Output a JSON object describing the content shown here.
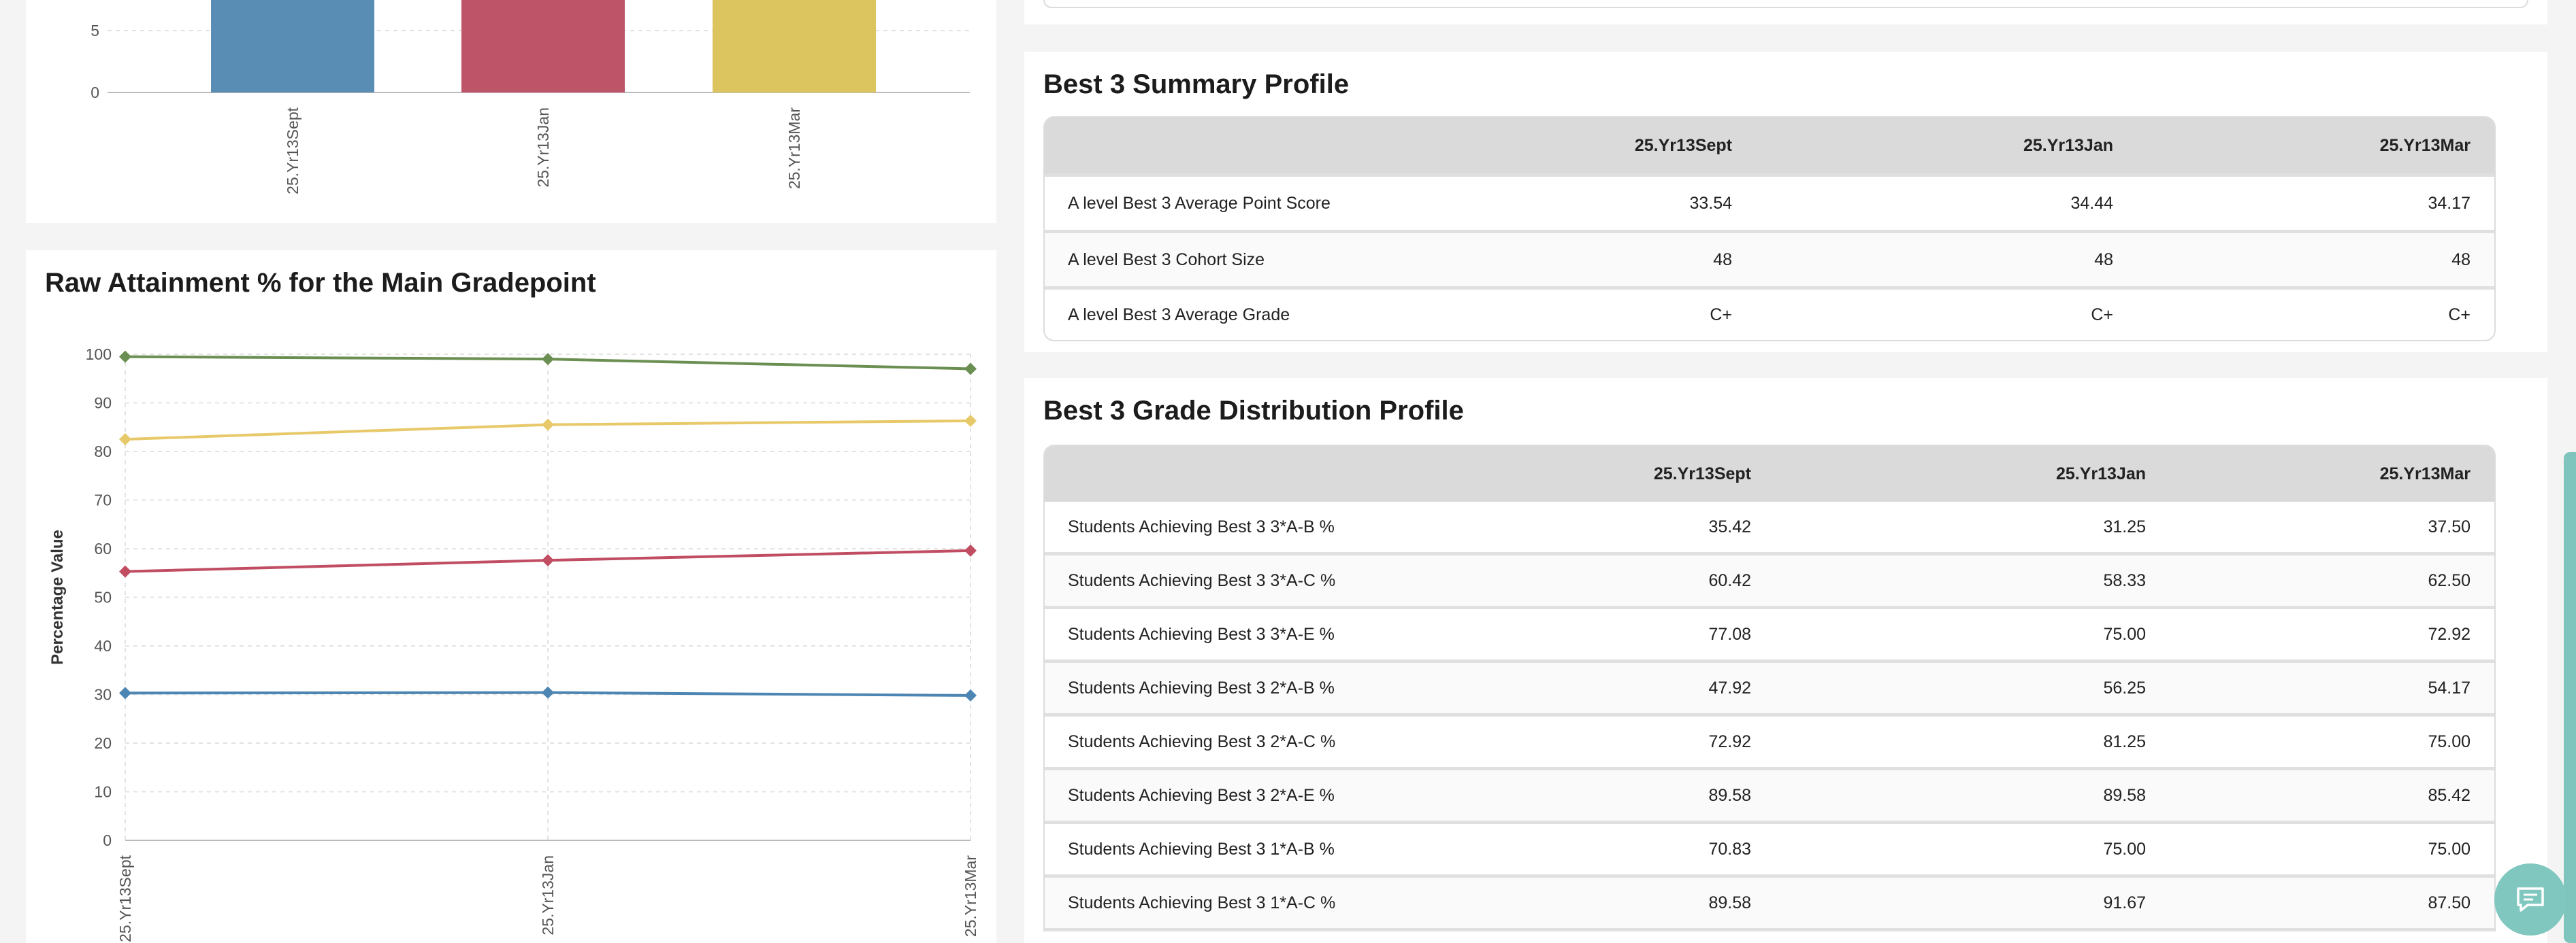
{
  "bar_chart_top": {
    "chart_data": {
      "type": "bar",
      "categories": [
        "25.Yr13Sept",
        "25.Yr13Jan",
        "25.Yr13Mar"
      ],
      "y_ticks_visible": [
        "5",
        "0"
      ],
      "series_colors": [
        "#5a8db3",
        "#be5468",
        "#dcc45e"
      ]
    }
  },
  "line_chart": {
    "title": "Raw Attainment % for the Main Gradepoint",
    "chart_data": {
      "type": "line",
      "categories": [
        "25.Yr13Sept",
        "25.Yr13Jan",
        "25.Yr13Mar"
      ],
      "ylabel": "Percentage Value",
      "ylim": [
        0,
        100
      ],
      "y_ticks": [
        "0",
        "10",
        "20",
        "30",
        "40",
        "50",
        "60",
        "70",
        "80",
        "90",
        "100"
      ],
      "grid": true,
      "series": [
        {
          "values": [
            99.5,
            99,
            97
          ],
          "color": "#6b8f52"
        },
        {
          "values": [
            82.5,
            85.5,
            86.3
          ],
          "color": "#e8c96a"
        },
        {
          "values": [
            55.3,
            57.6,
            59.6
          ],
          "color": "#c04d62"
        },
        {
          "values": [
            30.3,
            30.4,
            29.8
          ],
          "color": "#4d86b3"
        }
      ]
    }
  },
  "summary": {
    "title": "Best 3 Summary Profile",
    "columns": [
      "25.Yr13Sept",
      "25.Yr13Jan",
      "25.Yr13Mar"
    ],
    "rows": [
      {
        "label": "A level Best 3 Average Point Score",
        "values": [
          "33.54",
          "34.44",
          "34.17"
        ]
      },
      {
        "label": "A level Best 3 Cohort Size",
        "values": [
          "48",
          "48",
          "48"
        ]
      },
      {
        "label": "A level Best 3 Average Grade",
        "values": [
          "C+",
          "C+",
          "C+"
        ]
      }
    ]
  },
  "distribution": {
    "title": "Best 3 Grade Distribution Profile",
    "columns": [
      "25.Yr13Sept",
      "25.Yr13Jan",
      "25.Yr13Mar"
    ],
    "rows": [
      {
        "label": "Students Achieving Best 3 3*A-B %",
        "values": [
          "35.42",
          "31.25",
          "37.50"
        ]
      },
      {
        "label": "Students Achieving Best 3 3*A-C %",
        "values": [
          "60.42",
          "58.33",
          "62.50"
        ]
      },
      {
        "label": "Students Achieving Best 3 3*A-E %",
        "values": [
          "77.08",
          "75.00",
          "72.92"
        ]
      },
      {
        "label": "Students Achieving Best 3 2*A-B %",
        "values": [
          "47.92",
          "56.25",
          "54.17"
        ]
      },
      {
        "label": "Students Achieving Best 3 2*A-C %",
        "values": [
          "72.92",
          "81.25",
          "75.00"
        ]
      },
      {
        "label": "Students Achieving Best 3 2*A-E %",
        "values": [
          "89.58",
          "89.58",
          "85.42"
        ]
      },
      {
        "label": "Students Achieving Best 3 1*A-B %",
        "values": [
          "70.83",
          "75.00",
          "75.00"
        ]
      },
      {
        "label": "Students Achieving Best 3 1*A-C %",
        "values": [
          "89.58",
          "91.67",
          "87.50"
        ]
      }
    ]
  },
  "chat": {
    "icon": "chat-icon"
  }
}
